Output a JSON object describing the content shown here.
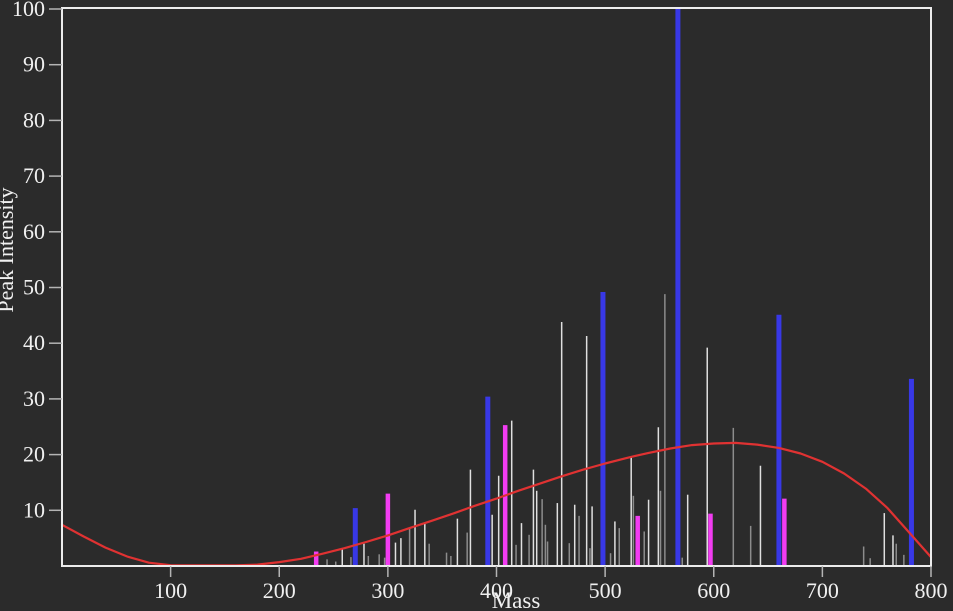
{
  "chart_data": {
    "type": "bar",
    "title": "",
    "xlabel": "Mass",
    "ylabel": "Peak Intensity",
    "xlim": [
      0,
      800
    ],
    "ylim": [
      0,
      100
    ],
    "x_ticks": [
      100,
      200,
      300,
      400,
      500,
      600,
      700,
      800
    ],
    "y_ticks": [
      10,
      20,
      30,
      40,
      50,
      60,
      70,
      80,
      90,
      100
    ],
    "grid": false,
    "legend": false,
    "style": {
      "background": "#2b2b2b",
      "axis_color": "#ececec",
      "tick_color": "#b4b4b4",
      "text_color": "#f0f0f0",
      "minor_peak_light": "#e0e0e0",
      "minor_peak_dim": "#8c8c8c",
      "blue_peak_color": "#3838e6",
      "magenta_peak_color": "#f23cf2",
      "fit_curve_color": "#e03232"
    },
    "series": [
      {
        "name": "minor-peaks",
        "type": "bar",
        "color": "mixed-gray",
        "points": [
          [
            244,
            1.2,
            "dim"
          ],
          [
            252,
            0.8,
            "dim"
          ],
          [
            258,
            3.2,
            "light"
          ],
          [
            266,
            1.6,
            "dim"
          ],
          [
            278,
            4.0,
            "light"
          ],
          [
            282,
            1.8,
            "dim"
          ],
          [
            292,
            2.1,
            "dim"
          ],
          [
            297,
            1.5,
            "dim"
          ],
          [
            307,
            4.2,
            "light"
          ],
          [
            312,
            5.0,
            "light"
          ],
          [
            320,
            6.8,
            "dim"
          ],
          [
            325,
            10.1,
            "light"
          ],
          [
            334,
            7.7,
            "light"
          ],
          [
            338,
            4.0,
            "dim"
          ],
          [
            354,
            2.4,
            "dim"
          ],
          [
            358,
            1.8,
            "dim"
          ],
          [
            364,
            8.5,
            "light"
          ],
          [
            373,
            6.0,
            "dim"
          ],
          [
            376,
            17.3,
            "light"
          ],
          [
            396,
            9.2,
            "light"
          ],
          [
            402,
            16.2,
            "light"
          ],
          [
            414,
            26.1,
            "light"
          ],
          [
            418,
            3.8,
            "dim"
          ],
          [
            423,
            7.7,
            "light"
          ],
          [
            430,
            5.6,
            "dim"
          ],
          [
            434,
            17.3,
            "light"
          ],
          [
            437,
            13.5,
            "light"
          ],
          [
            442,
            12.0,
            "dim"
          ],
          [
            445,
            7.4,
            "dim"
          ],
          [
            447,
            4.4,
            "dim"
          ],
          [
            456,
            11.3,
            "light"
          ],
          [
            460,
            43.8,
            "light"
          ],
          [
            467,
            4.1,
            "dim"
          ],
          [
            472,
            11.0,
            "light"
          ],
          [
            476,
            9.0,
            "dim"
          ],
          [
            483,
            41.3,
            "light"
          ],
          [
            486,
            3.2,
            "dim"
          ],
          [
            488,
            10.7,
            "light"
          ],
          [
            505,
            2.3,
            "dim"
          ],
          [
            509,
            8.0,
            "light"
          ],
          [
            513,
            6.8,
            "dim"
          ],
          [
            524,
            19.5,
            "light"
          ],
          [
            526,
            12.6,
            "dim"
          ],
          [
            536,
            6.2,
            "dim"
          ],
          [
            540,
            11.9,
            "light"
          ],
          [
            549,
            24.9,
            "light"
          ],
          [
            551,
            13.5,
            "dim"
          ],
          [
            555,
            48.8,
            "dim"
          ],
          [
            571,
            1.5,
            "dim"
          ],
          [
            576,
            12.8,
            "light"
          ],
          [
            594,
            39.2,
            "light"
          ],
          [
            618,
            24.8,
            "dim"
          ],
          [
            634,
            7.2,
            "dim"
          ],
          [
            643,
            18.0,
            "light"
          ],
          [
            738,
            3.5,
            "dim"
          ],
          [
            744,
            1.4,
            "dim"
          ],
          [
            757,
            9.5,
            "light"
          ],
          [
            765,
            5.5,
            "light"
          ],
          [
            768,
            4.0,
            "dim"
          ],
          [
            775,
            2.0,
            "dim"
          ]
        ]
      },
      {
        "name": "highlighted-peaks-blue",
        "type": "bar",
        "color": "#3838e6",
        "points": [
          [
            270,
            10.4
          ],
          [
            392,
            30.4
          ],
          [
            498,
            49.2
          ],
          [
            567,
            100
          ],
          [
            660,
            45.1
          ],
          [
            782,
            33.6
          ]
        ]
      },
      {
        "name": "highlighted-peaks-magenta",
        "type": "bar",
        "color": "#f23cf2",
        "points": [
          [
            234,
            2.6
          ],
          [
            300,
            13.0
          ],
          [
            408,
            25.3
          ],
          [
            530,
            9.0
          ],
          [
            597,
            9.4
          ],
          [
            665,
            12.1
          ]
        ]
      },
      {
        "name": "fit-curve",
        "type": "line",
        "color": "#e03232",
        "points": [
          [
            0,
            7.4
          ],
          [
            20,
            5.3
          ],
          [
            40,
            3.3
          ],
          [
            60,
            1.7
          ],
          [
            80,
            0.6
          ],
          [
            100,
            0.15
          ],
          [
            120,
            0.1
          ],
          [
            140,
            0.1
          ],
          [
            160,
            0.1
          ],
          [
            180,
            0.25
          ],
          [
            200,
            0.7
          ],
          [
            220,
            1.3
          ],
          [
            240,
            2.2
          ],
          [
            260,
            3.2
          ],
          [
            280,
            4.3
          ],
          [
            300,
            5.5
          ],
          [
            320,
            6.8
          ],
          [
            340,
            8.1
          ],
          [
            360,
            9.4
          ],
          [
            380,
            10.8
          ],
          [
            400,
            12.1
          ],
          [
            420,
            13.5
          ],
          [
            440,
            14.8
          ],
          [
            460,
            16.1
          ],
          [
            480,
            17.3
          ],
          [
            500,
            18.4
          ],
          [
            520,
            19.4
          ],
          [
            540,
            20.3
          ],
          [
            560,
            21.1
          ],
          [
            580,
            21.7
          ],
          [
            600,
            22.0
          ],
          [
            620,
            22.1
          ],
          [
            640,
            21.8
          ],
          [
            660,
            21.2
          ],
          [
            680,
            20.2
          ],
          [
            700,
            18.7
          ],
          [
            720,
            16.6
          ],
          [
            740,
            13.9
          ],
          [
            760,
            10.4
          ],
          [
            780,
            6.0
          ],
          [
            800,
            1.6
          ]
        ]
      }
    ]
  }
}
